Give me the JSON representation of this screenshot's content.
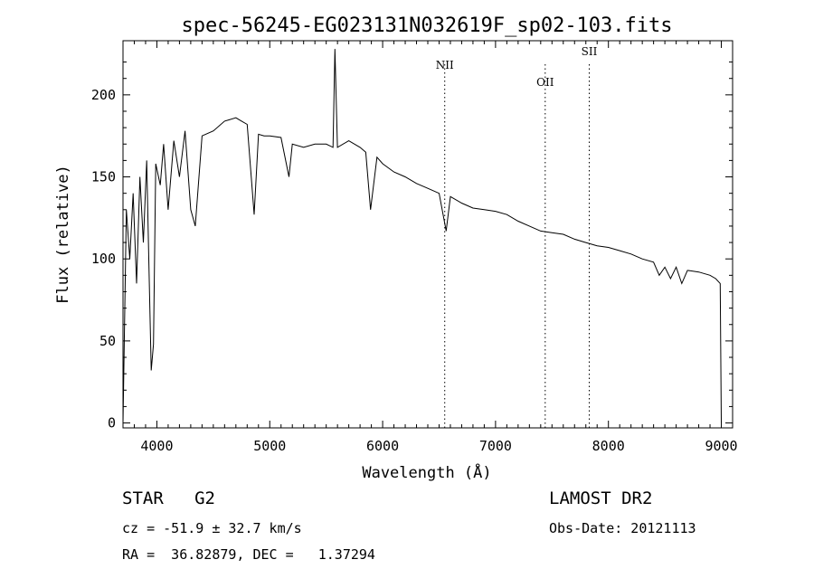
{
  "chart_data": {
    "type": "line",
    "title": "spec-56245-EG023131N032619F_sp02-103.fits",
    "xlabel": "Wavelength (Å)",
    "ylabel": "Flux (relative)",
    "xlim": [
      3700,
      9100
    ],
    "ylim": [
      -3,
      233
    ],
    "xticks": [
      4000,
      5000,
      6000,
      7000,
      8000,
      9000
    ],
    "yticks": [
      0,
      50,
      100,
      150,
      200
    ],
    "grid": false,
    "series": [
      {
        "x": [
          3700,
          3730,
          3760,
          3790,
          3820,
          3850,
          3880,
          3910,
          3930,
          3950,
          3970,
          3990,
          4030,
          4060,
          4100,
          4150,
          4200,
          4250,
          4300,
          4340,
          4400,
          4500,
          4600,
          4700,
          4750,
          4800,
          4862,
          4900,
          4950,
          5000,
          5100,
          5170,
          5200,
          5300,
          5400,
          5500,
          5560,
          5577,
          5600,
          5700,
          5800,
          5850,
          5893,
          5950,
          6000,
          6100,
          6200,
          6300,
          6400,
          6500,
          6563,
          6600,
          6700,
          6800,
          6900,
          7000,
          7100,
          7200,
          7300,
          7400,
          7500,
          7600,
          7700,
          7800,
          7900,
          8000,
          8100,
          8200,
          8300,
          8400,
          8450,
          8500,
          8550,
          8600,
          8650,
          8700,
          8800,
          8900,
          8950,
          8990,
          9000
        ],
        "y": [
          0,
          130,
          100,
          140,
          85,
          150,
          110,
          160,
          95,
          32,
          48,
          158,
          145,
          170,
          130,
          172,
          150,
          178,
          130,
          120,
          175,
          178,
          184,
          186,
          184,
          182,
          127,
          176,
          175,
          175,
          174,
          150,
          170,
          168,
          170,
          170,
          168,
          228,
          168,
          172,
          168,
          165,
          130,
          162,
          158,
          153,
          150,
          146,
          143,
          140,
          117,
          138,
          134,
          131,
          130,
          129,
          127,
          123,
          120,
          117,
          116,
          115,
          112,
          110,
          108,
          107,
          105,
          103,
          100,
          98,
          90,
          95,
          88,
          95,
          85,
          93,
          92,
          90,
          88,
          85,
          0
        ]
      }
    ],
    "lines": [
      {
        "label": "NII",
        "x": 6550
      },
      {
        "label": "OII",
        "x": 7440
      },
      {
        "label": "SII",
        "x": 7830
      }
    ]
  },
  "info": {
    "class_label": "STAR   G2",
    "survey_label": "LAMOST DR2",
    "cz_label": "cz = -51.9 ± 32.7 km/s",
    "obs_label": "Obs-Date: 20121113",
    "radec_label": "RA =  36.82879, DEC =   1.37294"
  }
}
